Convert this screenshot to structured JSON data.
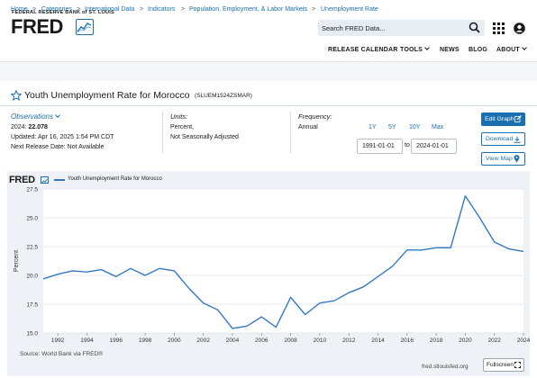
{
  "header": {
    "bank_name": "FEDERAL RESERVE BANK of ST. LOUIS",
    "logo_text": "FRED",
    "search_placeholder": "Search FRED Data..."
  },
  "nav": {
    "release_calendar": "RELEASE CALENDAR",
    "tools": "TOOLS",
    "news": "NEWS",
    "blog": "BLOG",
    "about": "ABOUT"
  },
  "breadcrumb": [
    "Home",
    "Categories",
    "International Data",
    "Indicators",
    "Population, Employment, & Labor Markets",
    "Unemployment Rate"
  ],
  "series": {
    "title": "Youth Unemployment Rate for Morocco",
    "id": "(SLUEM1524ZSMAR)"
  },
  "observations": {
    "label": "Observations",
    "latest_year": "2024:",
    "latest_value": "22.078",
    "updated": "Updated: Apr 16, 2025 1:54 PM CDT",
    "next_release": "Next Release Date: Not Available"
  },
  "units": {
    "label": "Units:",
    "line1": "Percent,",
    "line2": "Not Seasonally Adjusted"
  },
  "frequency": {
    "label": "Frequency:",
    "value": "Annual"
  },
  "range": {
    "buttons": [
      "1Y",
      "5Y",
      "10Y",
      "Max"
    ],
    "start": "1991-01-01",
    "to": "to",
    "end": "2024-01-01"
  },
  "actions": {
    "edit_graph": "Edit Graph",
    "download": "Download",
    "view_map": "View Map"
  },
  "graph": {
    "logo": "FRED",
    "source": "Source: World Bank via FRED®",
    "site": "fred.stlouisfed.org",
    "fullscreen": "Fullscreen"
  },
  "colors": {
    "accent": "#1a6fae",
    "line": "#3578c3",
    "plot_bg": "#ffffff",
    "frame_bg": "#eef2f6"
  },
  "chart_data": {
    "type": "line",
    "series": [
      {
        "name": "Youth Unemployment Rate for Morocco",
        "x": [
          1991,
          1992,
          1993,
          1994,
          1995,
          1996,
          1997,
          1998,
          1999,
          2000,
          2001,
          2002,
          2003,
          2004,
          2005,
          2006,
          2007,
          2008,
          2009,
          2010,
          2011,
          2012,
          2013,
          2014,
          2015,
          2016,
          2017,
          2018,
          2019,
          2020,
          2021,
          2022,
          2023,
          2024
        ],
        "values": [
          19.7,
          20.1,
          20.4,
          20.3,
          20.5,
          19.9,
          20.6,
          20.0,
          20.6,
          20.4,
          18.9,
          17.6,
          17.0,
          15.4,
          15.6,
          16.4,
          15.5,
          18.1,
          16.6,
          17.6,
          17.8,
          18.5,
          19.0,
          19.9,
          20.8,
          22.2,
          22.2,
          22.4,
          22.4,
          26.9,
          25.0,
          22.9,
          22.3,
          22.078
        ]
      }
    ],
    "title": "",
    "xlabel": "",
    "ylabel": "Percent",
    "xlim": [
      1991,
      2024
    ],
    "ylim": [
      15.0,
      27.5
    ],
    "xticks": [
      1992,
      1994,
      1996,
      1998,
      2000,
      2002,
      2004,
      2006,
      2008,
      2010,
      2012,
      2014,
      2016,
      2018,
      2020,
      2022,
      2024
    ],
    "yticks": [
      15.0,
      17.5,
      20.0,
      22.5,
      25.0,
      27.5
    ],
    "grid": "horizontal",
    "legend": "top-left"
  }
}
